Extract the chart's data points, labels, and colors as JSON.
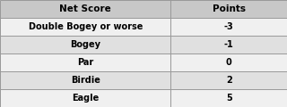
{
  "header": [
    "Net Score",
    "Points"
  ],
  "rows": [
    [
      "Double Bogey or worse",
      "-3"
    ],
    [
      "Bogey",
      "-1"
    ],
    [
      "Par",
      "0"
    ],
    [
      "Birdie",
      "2"
    ],
    [
      "Eagle",
      "5"
    ]
  ],
  "header_bg": "#c8c8c8",
  "row_bg_odd": "#f0f0f0",
  "row_bg_even": "#e0e0e0",
  "border_color": "#999999",
  "text_color": "#000000",
  "header_fontsize": 7.5,
  "row_fontsize": 7.0,
  "col_split": 0.595
}
